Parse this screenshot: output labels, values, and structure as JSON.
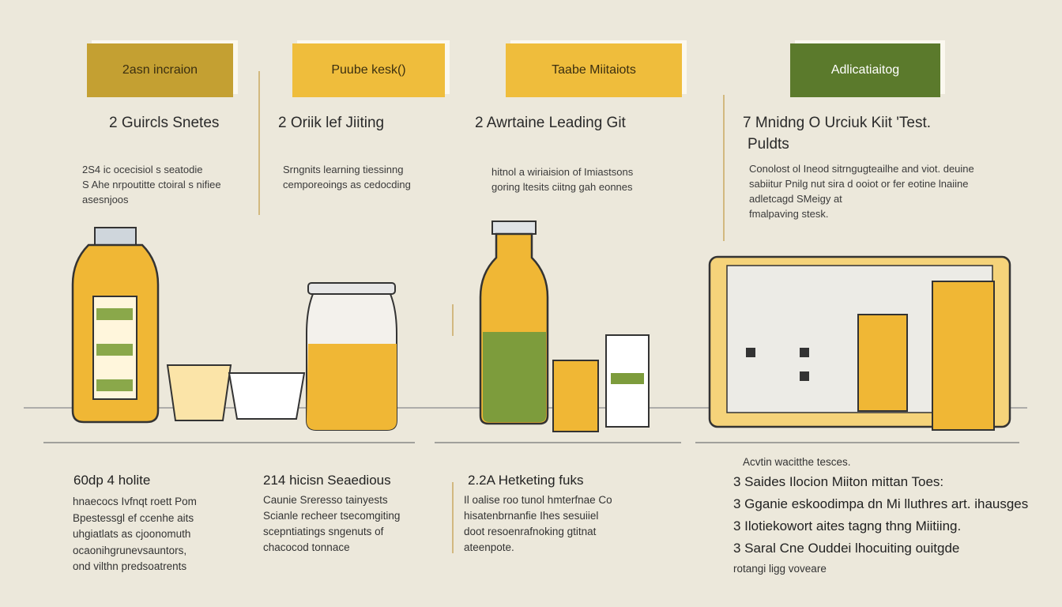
{
  "columns": [
    {
      "tab": "2asn incraion",
      "heading": [
        "2 Guircls Snetes"
      ],
      "description": [
        "2S4 ic ocecisiol s seatodie",
        "S Ahe nrpoutitte ctoiral s nifiee",
        "asesnjoos"
      ],
      "bottom_heading": "60dp 4 holite",
      "bottom_lines": [
        "hnaecocs Ivfnqt roett Pom",
        "Bpestessgl ef ccenhe aits",
        "uhgiatlats as cjoonomuth",
        "ocaonihgrunevsauntors,",
        "ond vilthn predsoatrents"
      ]
    },
    {
      "tab": "Puube kesk()",
      "heading": [
        "2 Oriik lef Jiiting"
      ],
      "description": [
        "Srngnits learning tiessinng",
        "cemporeoings as cedocding"
      ],
      "bottom_heading": "214 hicisn Seaedious",
      "bottom_lines": [
        "Caunie Sreresso tainyests",
        "Scianle recheer tsecomgiting",
        "scepntiatings sngenuts of",
        "chacocod tonnace"
      ]
    },
    {
      "tab": "Taabe Miitaiots",
      "heading": [
        "2 Awrtaine Leading Git"
      ],
      "description": [
        "hitnol a wiriaision of Imiastsons",
        "goring ltesits ciitng gah eonnes"
      ],
      "bottom_heading": "2.2A Hetketing fuks",
      "bottom_lines": [
        "Il oalise roo tunol hmterfnae Co",
        "hisatenbrnanfie Ihes sesuiiel",
        "doot resoenrafnoking gtitnat",
        "ateenpote."
      ]
    },
    {
      "tab": "Adlicatiaitog",
      "heading": [
        "7 Mnidng  O Urciuk Kiit 'Test.",
        "Puldts"
      ],
      "description": [
        "Conolost ol Ineod sitrngugteailhe and viot. deuine",
        "sabiitur Pnilg nut sira d ooiot or fer eotine lnaiine",
        "adletcagd SMeigy at",
        "fmalpaving stesk."
      ],
      "bottom_heading": "Acvtin wacitthe tesces.",
      "bottom_lines": [
        "3  Saides Ilocion Miiton mittan Toes:",
        "3  Gganie eskoodimpa dn Mi lluthres art. ihausges",
        "3  Ilotiekowort aites tagng thng Miitiing.",
        "3  Saral  Cne Ouddei lhocuiting ouitgde",
        "rotangi ligg voveare"
      ]
    }
  ]
}
